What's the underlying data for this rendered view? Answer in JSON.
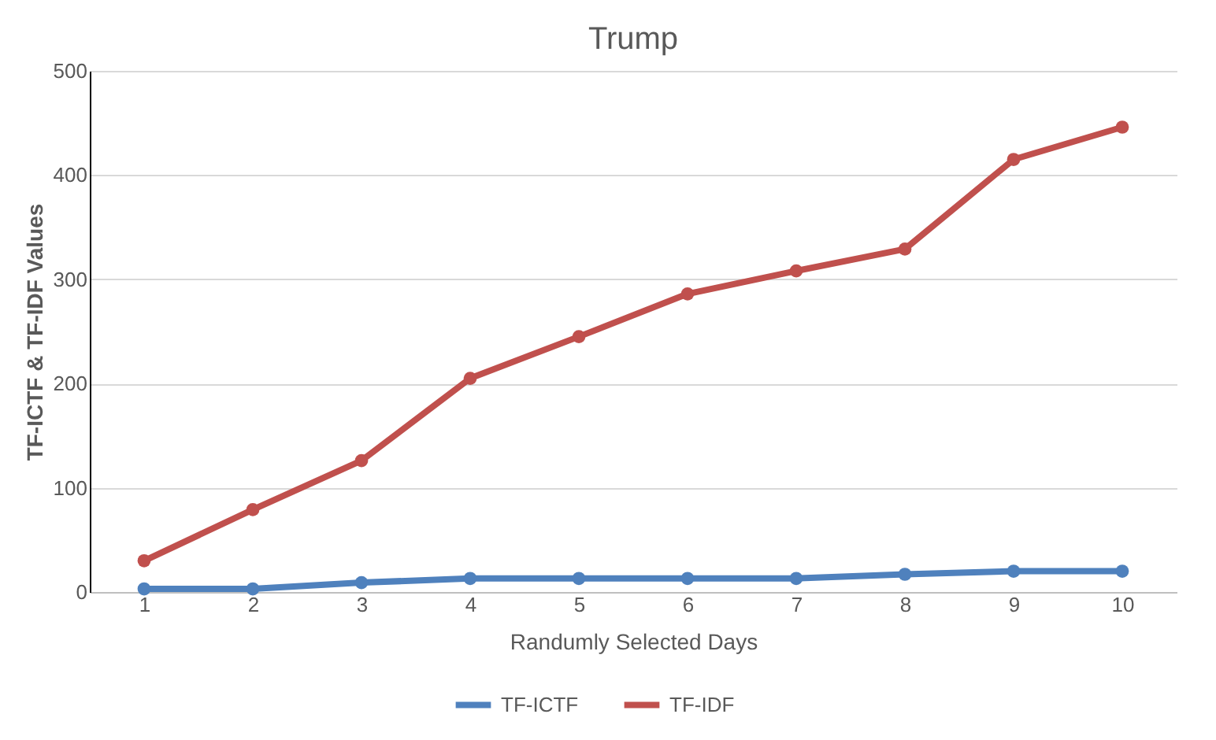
{
  "chart_data": {
    "type": "line",
    "title": "Trump",
    "xlabel": "Randumly Selected Days",
    "ylabel": "TF-ICTF & TF-IDF Values",
    "categories": [
      "1",
      "2",
      "3",
      "4",
      "5",
      "6",
      "7",
      "8",
      "9",
      "10"
    ],
    "series": [
      {
        "name": "TF-ICTF",
        "color": "#4f81bd",
        "values": [
          3,
          3,
          9,
          13,
          13,
          13,
          13,
          17,
          20,
          20
        ]
      },
      {
        "name": "TF-IDF",
        "color": "#c0504d",
        "values": [
          30,
          79,
          126,
          205,
          245,
          286,
          308,
          329,
          415,
          446
        ]
      }
    ],
    "ylim": [
      0,
      500
    ],
    "yticks": [
      0,
      100,
      200,
      300,
      400,
      500
    ],
    "grid": "y",
    "legend": "bottom",
    "marker": "circle",
    "line_style": "solid"
  }
}
